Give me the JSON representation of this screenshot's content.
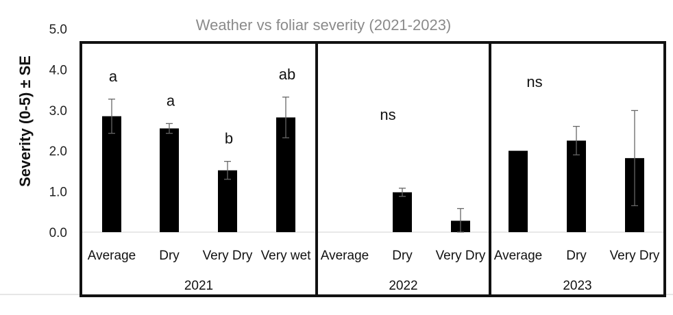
{
  "chart_data": {
    "type": "bar",
    "title": "Weather vs foliar severity (2021-2023)",
    "xlabel": "",
    "ylabel": "Severity (0-5) ± SE",
    "ylim": [
      0,
      5
    ],
    "yticks": [
      "0.0",
      "1.0",
      "2.0",
      "3.0",
      "4.0",
      "5.0"
    ],
    "grid": false,
    "bar_color": "#000000",
    "groups": [
      {
        "year": "2021",
        "significance": "",
        "bars": [
          {
            "category": "Average",
            "value": 2.85,
            "se": 0.42,
            "letter": "a"
          },
          {
            "category": "Dry",
            "value": 2.55,
            "se": 0.12,
            "letter": "a"
          },
          {
            "category": "Very Dry",
            "value": 1.52,
            "se": 0.22,
            "letter": "b"
          },
          {
            "category": "Very wet",
            "value": 2.82,
            "se": 0.5,
            "letter": "ab"
          }
        ]
      },
      {
        "year": "2022",
        "significance": "ns",
        "bars": [
          {
            "category": "Average",
            "value": 0,
            "se": 0,
            "letter": ""
          },
          {
            "category": "Dry",
            "value": 0.98,
            "se": 0.1,
            "letter": ""
          },
          {
            "category": "Very Dry",
            "value": 0.28,
            "se": 0.3,
            "letter": ""
          }
        ]
      },
      {
        "year": "2023",
        "significance": "ns",
        "bars": [
          {
            "category": "Average",
            "value": 2.0,
            "se": 0,
            "letter": ""
          },
          {
            "category": "Dry",
            "value": 2.25,
            "se": 0.35,
            "letter": ""
          },
          {
            "category": "Very Dry",
            "value": 1.82,
            "se": 1.17,
            "letter": ""
          }
        ]
      }
    ]
  }
}
